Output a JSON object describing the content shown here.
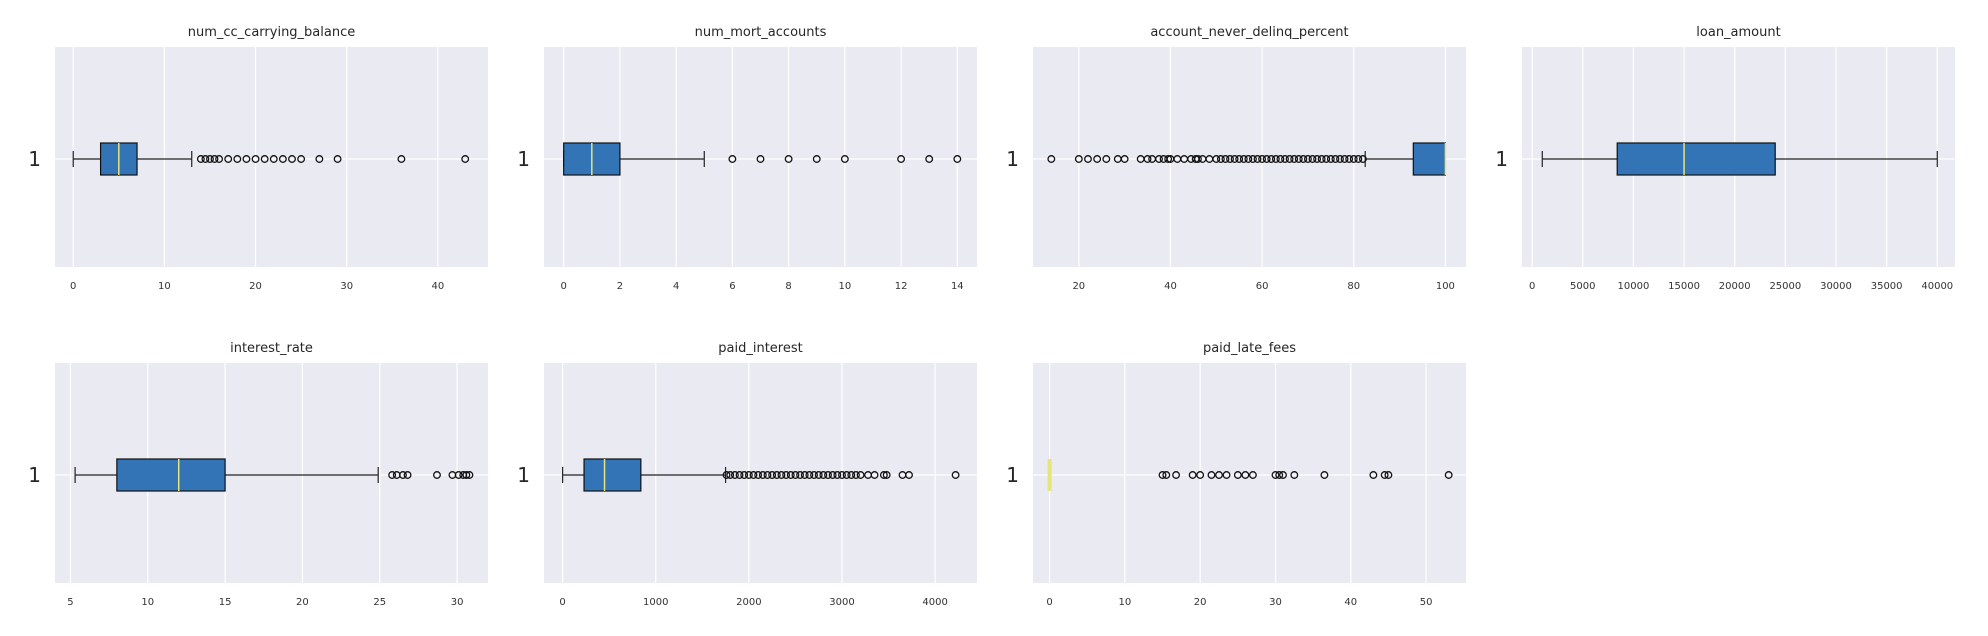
{
  "chart_data": [
    {
      "type": "boxplot",
      "title": "num_cc_carrying_balance",
      "category": "1",
      "xlim": [
        -2,
        45.5
      ],
      "xticks": [
        0,
        10,
        20,
        30,
        40
      ],
      "whisker_low": 0,
      "q1": 3,
      "median": 5,
      "q3": 7,
      "whisker_high": 13,
      "outliers": [
        14,
        14.5,
        15,
        15.5,
        16,
        17,
        18,
        19,
        20,
        21,
        22,
        23,
        24,
        25,
        27,
        29,
        36,
        43
      ],
      "median_color": "#e5e57a",
      "box_color": "#3274b5",
      "background": "#eaeaf2"
    },
    {
      "type": "boxplot",
      "title": "num_mort_accounts",
      "category": "1",
      "xlim": [
        -0.7,
        14.7
      ],
      "xticks": [
        0,
        2,
        4,
        6,
        8,
        10,
        12,
        14
      ],
      "whisker_low": 0,
      "q1": 0,
      "median": 1,
      "q3": 2,
      "whisker_high": 5,
      "outliers": [
        6,
        7,
        8,
        9,
        10,
        12,
        13,
        14
      ],
      "median_color": "#e5e57a",
      "box_color": "#3274b5",
      "background": "#eaeaf2"
    },
    {
      "type": "boxplot",
      "title": "account_never_delinq_percent",
      "category": "1",
      "xlim": [
        10,
        104.5
      ],
      "xticks": [
        20,
        40,
        60,
        80,
        100
      ],
      "whisker_low": 82.5,
      "q1": 93,
      "median": 100,
      "q3": 100,
      "whisker_high": 100,
      "outliers": [
        14,
        20,
        22,
        24,
        26,
        28.5,
        30,
        33.5,
        35,
        36,
        37.5,
        38.5,
        39.5,
        40,
        41.5,
        43,
        44.5,
        45.5,
        46,
        47,
        48.5,
        50,
        51,
        52,
        53,
        54,
        55,
        56,
        57,
        58,
        59,
        60,
        61,
        62,
        63,
        64,
        65,
        66,
        67,
        68,
        69,
        70,
        71,
        72,
        73,
        74,
        75,
        76,
        77,
        78,
        79,
        80,
        81,
        82
      ],
      "median_color": "#e5e57a",
      "box_color": "#3274b5",
      "background": "#eaeaf2"
    },
    {
      "type": "boxplot",
      "title": "loan_amount",
      "category": "1",
      "xlim": [
        -1000,
        41750
      ],
      "xticks": [
        0,
        5000,
        10000,
        15000,
        20000,
        25000,
        30000,
        35000,
        40000
      ],
      "whisker_low": 1000,
      "q1": 8400,
      "median": 15000,
      "q3": 24000,
      "whisker_high": 40000,
      "outliers": [],
      "median_color": "#e5e57a",
      "box_color": "#3274b5",
      "background": "#eaeaf2"
    },
    {
      "type": "boxplot",
      "title": "interest_rate",
      "category": "1",
      "xlim": [
        4.0,
        32.0
      ],
      "xticks": [
        5,
        10,
        15,
        20,
        25,
        30
      ],
      "whisker_low": 5.3,
      "q1": 8.0,
      "median": 12.0,
      "q3": 15.0,
      "whisker_high": 24.9,
      "outliers": [
        25.8,
        26.1,
        26.5,
        26.8,
        28.7,
        29.7,
        30.1,
        30.4,
        30.6,
        30.8
      ],
      "median_color": "#e5e57a",
      "box_color": "#3274b5",
      "background": "#eaeaf2"
    },
    {
      "type": "boxplot",
      "title": "paid_interest",
      "category": "1",
      "xlim": [
        -200,
        4450
      ],
      "xticks": [
        0,
        1000,
        2000,
        3000,
        4000
      ],
      "whisker_low": 0,
      "q1": 230,
      "median": 450,
      "q3": 840,
      "whisker_high": 1750,
      "outliers": [
        1760,
        1800,
        1850,
        1900,
        1950,
        2000,
        2050,
        2100,
        2150,
        2200,
        2250,
        2300,
        2350,
        2400,
        2450,
        2500,
        2550,
        2600,
        2650,
        2700,
        2750,
        2800,
        2850,
        2900,
        2950,
        3000,
        3050,
        3100,
        3150,
        3200,
        3280,
        3350,
        3450,
        3480,
        3650,
        3720,
        4220
      ],
      "median_color": "#e5e57a",
      "box_color": "#3274b5",
      "background": "#eaeaf2"
    },
    {
      "type": "boxplot",
      "title": "paid_late_fees",
      "category": "1",
      "xlim": [
        -2.2,
        55.3
      ],
      "xticks": [
        0,
        10,
        20,
        30,
        40,
        50
      ],
      "whisker_low": 0,
      "q1": 0,
      "median": 0,
      "q3": 0,
      "whisker_high": 0,
      "outliers": [
        15,
        15.5,
        16.8,
        19,
        20,
        21.5,
        22.5,
        23.5,
        25,
        26,
        27,
        30,
        30.5,
        31,
        32.5,
        36.5,
        43,
        44.5,
        45,
        53
      ],
      "median_color": "#e5e57a",
      "box_color": "#3274b5",
      "background": "#eaeaf2"
    }
  ]
}
